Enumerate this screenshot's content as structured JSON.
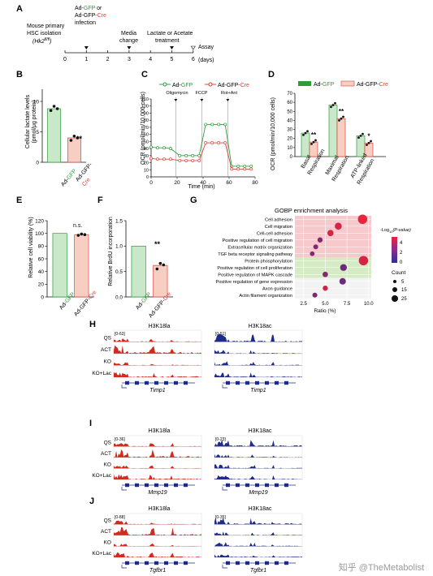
{
  "colors": {
    "green": "#2e9c3a",
    "red": "#e0413b",
    "green_fill": "#c9e8c9",
    "red_fill": "#f6cfc2",
    "la_track": "#d12a1e",
    "ac_track": "#1f2b88",
    "gene_model": "#1f2b88"
  },
  "panels": {
    "A": "A",
    "B": "B",
    "C": "C",
    "D": "D",
    "E": "E",
    "F": "F",
    "G": "G",
    "H": "H",
    "I": "I",
    "J": "J"
  },
  "panelA": {
    "step0": "Mouse primary",
    "step0b": "HSC isolation",
    "step0c": "(Hk2",
    "step0c_sup": "fl/fl",
    "step0c_end": ")",
    "step1_a": "Ad-",
    "step1_gfp": "GFP",
    "step1_or": " or",
    "step1_b": "Ad-GFP-",
    "step1_cre": "Cre",
    "step1_c": "infection",
    "step3a": "Media",
    "step3b": "change",
    "step5a": "Lactate or Acetate",
    "step5b": "treatment",
    "step6": "Assay",
    "ticks": [
      "0",
      "1",
      "2",
      "3",
      "4",
      "5",
      "6"
    ],
    "unit": "(days)"
  },
  "panelB": {
    "ylabel": "Cellular lactate levels",
    "ylabel2": "(pmol/μg protein)",
    "yticks": [
      "0",
      "5",
      "10"
    ],
    "sig": "**",
    "x1a": "Ad-",
    "x1b": "GFP",
    "x2a": "Ad-GFP-",
    "x2b": "Cre"
  },
  "panelC": {
    "legend1_a": "Ad-",
    "legend1_b": "GFP",
    "legend2_a": "Ad-GFP-",
    "legend2_b": "Cre",
    "ylabel": "OCR (pmol/min/10,000 cells)",
    "xlabel": "Time (min)",
    "yticks": [
      "0",
      "10",
      "20",
      "30",
      "40",
      "50",
      "60",
      "70",
      "80",
      "90",
      "100",
      "110"
    ],
    "xticks": [
      "0",
      "20",
      "40",
      "60",
      "80"
    ],
    "inj1": "Oligomycin",
    "inj2": "FCCP",
    "inj3": "Rot+Ant"
  },
  "panelD": {
    "legend1_a": "Ad-",
    "legend1_b": "GFP",
    "legend2_a": "Ad-GFP-",
    "legend2_b": "Cre",
    "ylabel": "OCR (pmol/min/10,000 cells)",
    "yticks": [
      "0",
      "10",
      "20",
      "30",
      "40",
      "50",
      "60",
      "70"
    ],
    "cats": [
      "Basal",
      "Respiration",
      "Maximal",
      "Respiration",
      "ATP-linked",
      "Respiration"
    ],
    "sig1": "**",
    "sig2": "**",
    "sig3": "*"
  },
  "panelE": {
    "ylabel": "Relative cell viability (%)",
    "yticks": [
      "0",
      "20",
      "40",
      "60",
      "80",
      "100",
      "120"
    ],
    "sig": "n.s.",
    "x1a": "Ad-",
    "x1b": "GFP",
    "x2a": "Ad-GFP-",
    "x2b": "Cre"
  },
  "panelF": {
    "ylabel": "Relative BrdU incorporation",
    "yticks": [
      "0.0",
      "0.5",
      "1.0",
      "1.5"
    ],
    "sig": "**",
    "x1a": "Ad-",
    "x1b": "GFP",
    "x2a": "Ad-GFP-",
    "x2b": "Cre"
  },
  "panelG": {
    "title": "GOBP enrichment analysis",
    "terms": [
      "Cell adhesion",
      "Cell migration",
      "Cell-cell adhesion",
      "Positive regulation of cell migration",
      "Extracellular matrix organization",
      "TGF beta receptor signaling pathway",
      "Protein phosphorylation",
      "Positive regulation of cell proliferation",
      "Positive regulation of MAPK cascade",
      "Positive regulation of gene expression",
      "Axon guidance",
      "Actin filament organization"
    ],
    "xticks": [
      "2.5",
      "5.0",
      "7.5",
      "10.0"
    ],
    "xlabel": "Ratio (%)",
    "cbar_title_a": "-Log",
    "cbar_title_sub": "10",
    "cbar_title_b": "(P-value)",
    "cbar_ticks": [
      "4",
      "2",
      "0"
    ],
    "count_title": "Count",
    "count_vals": [
      "5",
      "15",
      "25"
    ]
  },
  "chart_data": [
    {
      "type": "bar",
      "panel": "B",
      "categories": [
        "Ad-GFP",
        "Ad-GFP-Cre"
      ],
      "values": [
        8.8,
        4.0
      ],
      "ylim": [
        0,
        12
      ]
    },
    {
      "type": "line",
      "panel": "C",
      "xlabel": "Time (min)",
      "ylabel": "OCR (pmol/min/10,000 cells)",
      "xlim": [
        0,
        80
      ],
      "ylim": [
        0,
        110
      ],
      "x": [
        0,
        5,
        10,
        15,
        22,
        27,
        32,
        37,
        42,
        47,
        52,
        57,
        62,
        67,
        72,
        77
      ],
      "series": [
        {
          "name": "Ad-GFP",
          "values": [
            42,
            41,
            41,
            40,
            30,
            30,
            30,
            30,
            74,
            74,
            74,
            74,
            15,
            15,
            15,
            15
          ]
        },
        {
          "name": "Ad-GFP-Cre",
          "values": [
            26,
            25,
            25,
            25,
            23,
            23,
            23,
            23,
            48,
            48,
            48,
            48,
            11,
            11,
            11,
            11
          ]
        }
      ]
    },
    {
      "type": "bar",
      "panel": "D",
      "categories": [
        "Basal Respiration",
        "Maximal Respiration",
        "ATP-linked Respiration"
      ],
      "ylim": [
        0,
        70
      ],
      "series": [
        {
          "name": "Ad-GFP",
          "values": [
            26,
            57,
            23
          ]
        },
        {
          "name": "Ad-GFP-Cre",
          "values": [
            16,
            42,
            15
          ]
        }
      ]
    },
    {
      "type": "bar",
      "panel": "E",
      "categories": [
        "Ad-GFP",
        "Ad-GFP-Cre"
      ],
      "values": [
        100,
        98
      ],
      "ylim": [
        0,
        120
      ]
    },
    {
      "type": "bar",
      "panel": "F",
      "categories": [
        "Ad-GFP",
        "Ad-GFP-Cre"
      ],
      "values": [
        1.0,
        0.62
      ],
      "ylim": [
        0,
        1.5
      ]
    },
    {
      "type": "scatter",
      "panel": "G",
      "xlabel": "Ratio (%)",
      "xlim": [
        1.5,
        10.3
      ],
      "categories": [
        "Cell adhesion",
        "Cell migration",
        "Cell-cell adhesion",
        "Positive regulation of cell migration",
        "Extracellular matrix organization",
        "TGF beta receptor signaling pathway",
        "Protein phosphorylation",
        "Positive regulation of cell proliferation",
        "Positive regulation of MAPK cascade",
        "Positive regulation of gene expression",
        "Axon guidance",
        "Actin filament organization"
      ],
      "ratio": [
        9.3,
        6.5,
        5.6,
        4.4,
        3.9,
        3.5,
        9.4,
        7.1,
        5.0,
        7.0,
        5.0,
        3.8
      ],
      "neglog10p": [
        4.5,
        4.0,
        4.0,
        2.3,
        2.1,
        2.2,
        4.0,
        1.5,
        2.0,
        1.5,
        3.8,
        2.0
      ],
      "count": [
        26,
        17,
        14,
        10,
        9,
        8,
        26,
        16,
        11,
        15,
        10,
        9
      ]
    }
  ],
  "tracks": {
    "H": {
      "la_title": "H3K18la",
      "ac_title": "H3K18ac",
      "la_range": "[0-63]",
      "ac_range": "[0-51]",
      "gene": "Timp1",
      "rows": [
        "QS",
        "ACT",
        "KO",
        "KO+Lac"
      ]
    },
    "I": {
      "la_title": "H3K18la",
      "ac_title": "H3K18ac",
      "la_range": "[0-36]",
      "ac_range": "[0-23]",
      "gene": "Mmp19",
      "rows": [
        "QS",
        "ACT",
        "KO",
        "KO+Lac"
      ]
    },
    "J": {
      "la_title": "H3K18la",
      "ac_title": "H3K18ac",
      "la_range": "[0-88]",
      "ac_range": "[0-35]",
      "gene": "Tgfbr1",
      "rows": [
        "QS",
        "ACT",
        "KO",
        "KO+Lac"
      ]
    }
  },
  "watermark": "知乎 @TheMetabolist"
}
